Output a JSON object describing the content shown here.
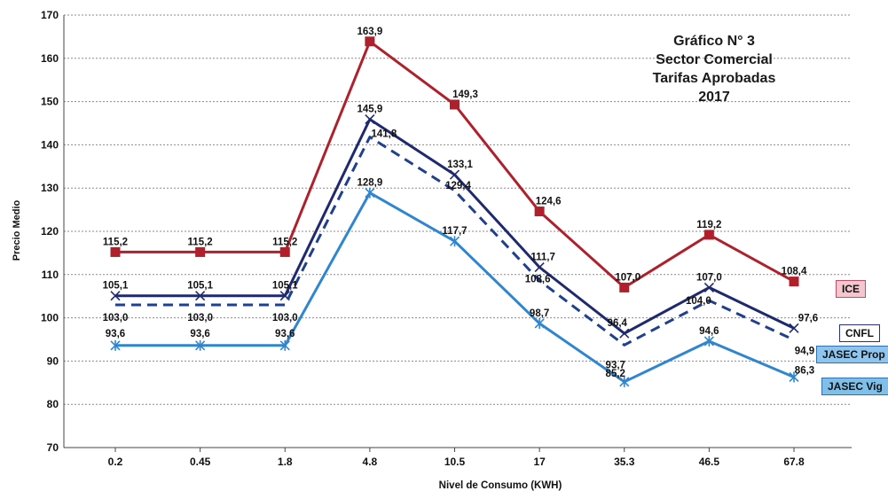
{
  "chart_data": {
    "type": "line",
    "title_lines": [
      "Gráfico N° 3",
      "Sector Comercial",
      "Tarifas Aprobadas",
      "2017"
    ],
    "xlabel": "Nivel de Consumo (KWH)",
    "ylabel": "Precio Medio",
    "categories": [
      "0.2",
      "0.45",
      "1.8",
      "4.8",
      "10.5",
      "17",
      "35.3",
      "46.5",
      "67.8"
    ],
    "ylim": [
      70,
      170
    ],
    "yticks": [
      "70",
      "80",
      "90",
      "100",
      "110",
      "120",
      "130",
      "140",
      "150",
      "160",
      "170"
    ],
    "grid": true,
    "series": [
      {
        "name": "ICE",
        "color": "#b0202c",
        "dash": "solid",
        "marker": "square",
        "values": [
          115.2,
          115.2,
          115.2,
          163.9,
          149.3,
          124.6,
          107.0,
          119.2,
          108.4
        ],
        "labels": [
          "115,2",
          "115,2",
          "115,2",
          "163,9",
          "149,3",
          "124,6",
          "107,0",
          "119,2",
          "108,4"
        ]
      },
      {
        "name": "CNFL",
        "color": "#1f2a6e",
        "dash": "solid",
        "marker": "x",
        "values": [
          105.1,
          105.1,
          105.1,
          145.9,
          133.1,
          111.7,
          96.4,
          107.0,
          97.6
        ],
        "labels": [
          "105,1",
          "105,1",
          "105,1",
          "145,9",
          "133,1",
          "111,7",
          "96,4",
          "107,0",
          "97,6"
        ]
      },
      {
        "name": "JASEC Prop",
        "color": "#1f3f8f",
        "dash": "dashed",
        "marker": "none",
        "values": [
          103.0,
          103.0,
          103.0,
          141.8,
          129.4,
          108.6,
          93.7,
          104.0,
          94.9
        ],
        "labels": [
          "103,0",
          "103,0",
          "103,0",
          "141,8",
          "129,4",
          "108,6",
          "93,7",
          "104,0",
          "94,9"
        ]
      },
      {
        "name": "JASEC Vig",
        "color": "#2f86d0",
        "dash": "solid",
        "marker": "star",
        "values": [
          93.6,
          93.6,
          93.6,
          128.9,
          117.7,
          98.7,
          85.2,
          94.6,
          86.3
        ],
        "labels": [
          "93,6",
          "93,6",
          "93,6",
          "128,9",
          "117,7",
          "98,7",
          "85,2",
          "94,6",
          "86,3"
        ]
      }
    ],
    "legend": [
      {
        "name": "ICE",
        "bg": "#f4c7cf",
        "border": "#c0506a"
      },
      {
        "name": "CNFL",
        "bg": "#ffffff",
        "border": "#2a2f7a"
      },
      {
        "name": "JASEC Prop",
        "bg": "#8fc4ee",
        "border": "#2f6fb0"
      },
      {
        "name": "JASEC Vig",
        "bg": "#7fbfe8",
        "border": "#2f6fb0"
      }
    ]
  }
}
